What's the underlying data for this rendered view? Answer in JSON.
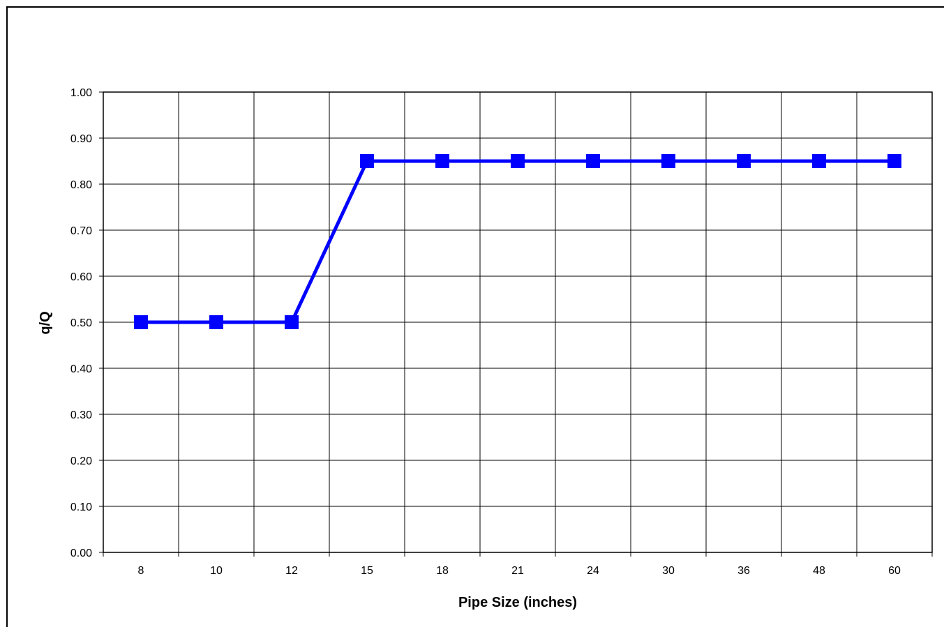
{
  "chart_data": {
    "type": "line",
    "title": "",
    "xlabel": "Pipe Size (inches)",
    "ylabel": "q/Q",
    "categories": [
      "8",
      "10",
      "12",
      "15",
      "18",
      "21",
      "24",
      "30",
      "36",
      "48",
      "60"
    ],
    "series": [
      {
        "values": [
          0.5,
          0.5,
          0.5,
          0.85,
          0.85,
          0.85,
          0.85,
          0.85,
          0.85,
          0.85,
          0.85
        ],
        "color": "#0000FF",
        "marker": "square"
      }
    ],
    "ylim": [
      0,
      1.0
    ],
    "y_ticks": [
      "0.00",
      "0.10",
      "0.20",
      "0.30",
      "0.40",
      "0.50",
      "0.60",
      "0.70",
      "0.80",
      "0.90",
      "1.00"
    ],
    "grid": true,
    "legend": "none"
  }
}
